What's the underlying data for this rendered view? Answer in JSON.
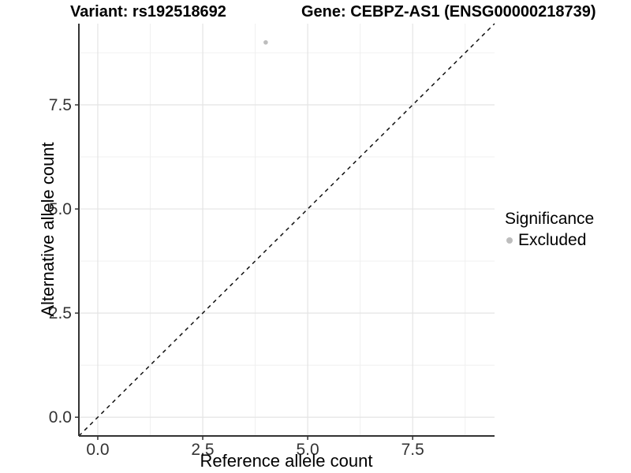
{
  "header": {
    "variant_title": "Variant: rs192518692",
    "gene_title": "Gene: CEBPZ-AS1 (ENSG00000218739)"
  },
  "chart_data": {
    "type": "scatter",
    "title": "Variant: rs192518692   Gene: CEBPZ-AS1 (ENSG00000218739)",
    "xlabel": "Reference allele count",
    "ylabel": "Alternative allele count",
    "xlim": [
      -0.45,
      9.45
    ],
    "ylim": [
      -0.45,
      9.45
    ],
    "x_ticks": [
      0.0,
      2.5,
      5.0,
      7.5
    ],
    "x_tick_labels": [
      "0.0",
      "2.5",
      "5.0",
      "7.5"
    ],
    "y_ticks": [
      0.0,
      2.5,
      5.0,
      7.5
    ],
    "y_tick_labels": [
      "0.0",
      "2.5",
      "5.0",
      "7.5"
    ],
    "minor_gridlines": [
      1.25,
      3.75,
      6.25,
      8.75
    ],
    "grid": true,
    "series": [
      {
        "name": "Excluded",
        "color": "#bdbdbd",
        "points": [
          {
            "x": 4,
            "y": 9
          }
        ]
      }
    ],
    "reference_line": {
      "type": "identity",
      "slope": 1,
      "intercept": 0,
      "style": "dashed",
      "color": "#111111"
    },
    "legend": {
      "position": "right",
      "title": "Significance",
      "items": [
        {
          "label": "Excluded",
          "color": "#bdbdbd"
        }
      ]
    },
    "colors": {
      "major_grid": "#e4e4e4",
      "minor_grid": "#f0f0f0",
      "axis_line": "#333333",
      "tick_label": "#333333",
      "point": "#bdbdbd"
    }
  }
}
